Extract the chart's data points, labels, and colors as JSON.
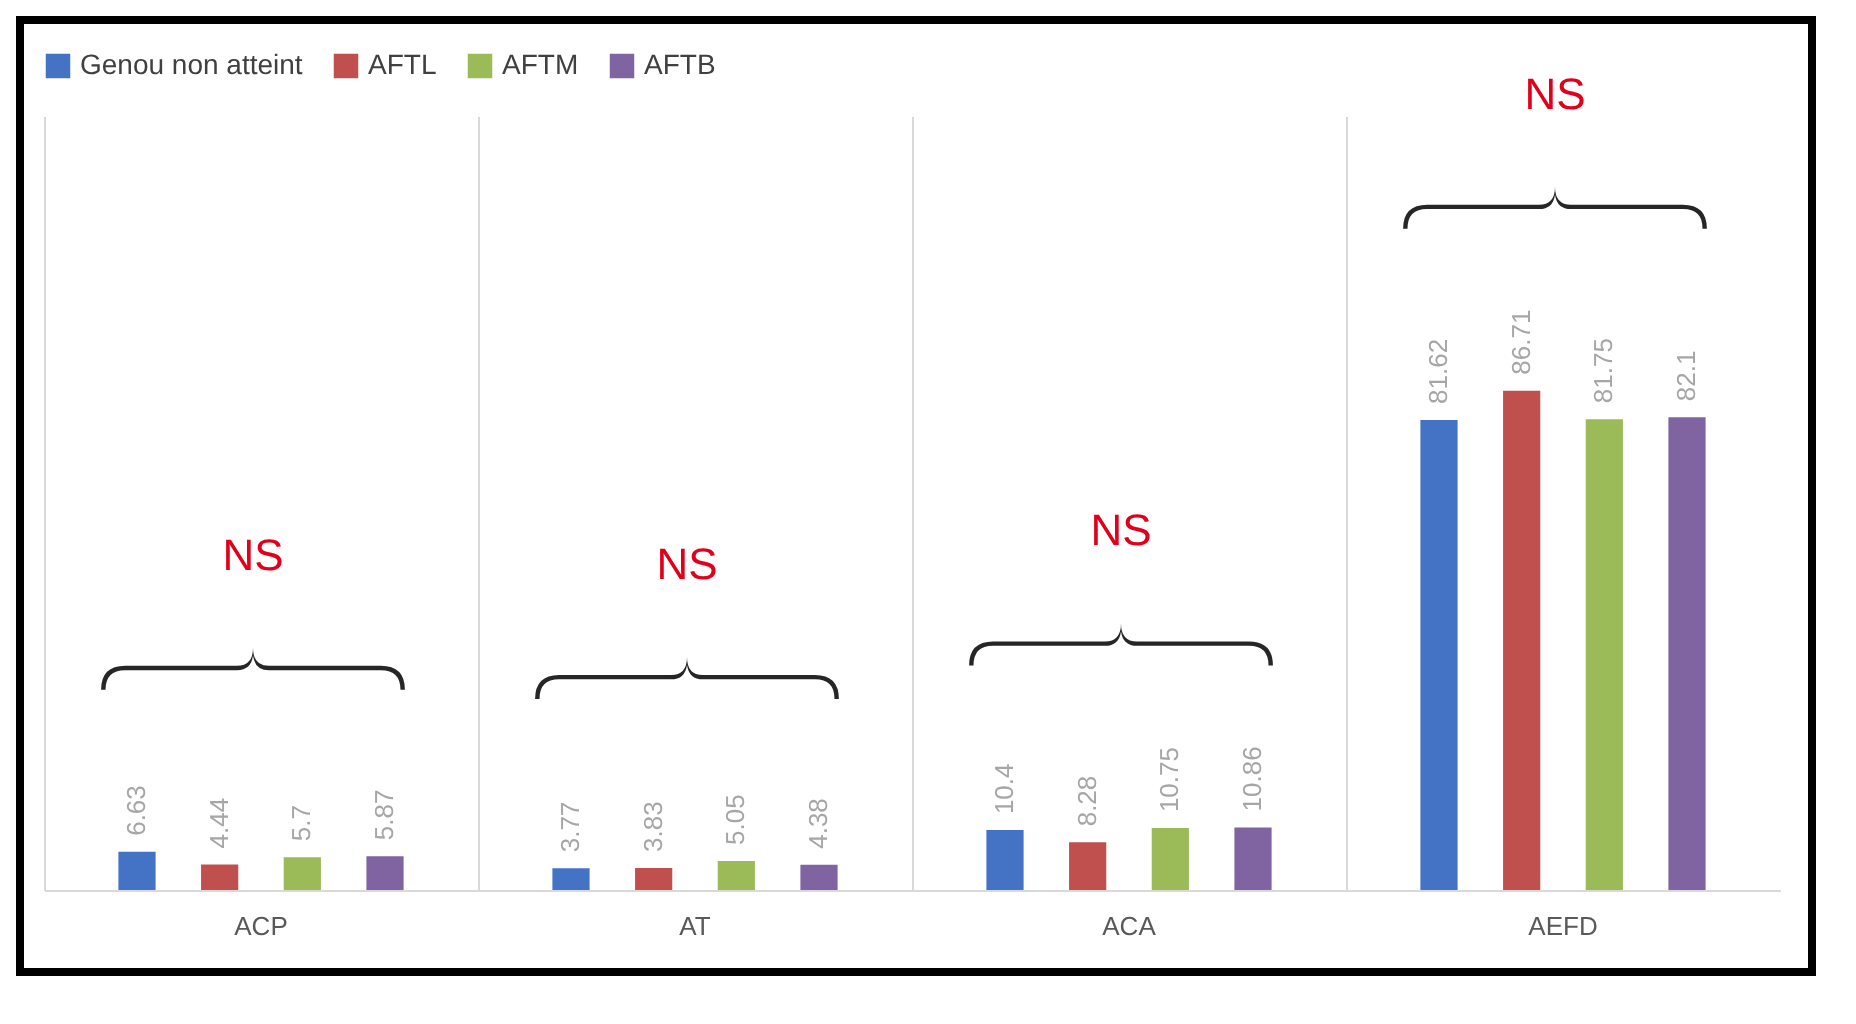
{
  "chart_data": {
    "type": "bar",
    "categories": [
      "ACP",
      "AT",
      "ACA",
      "AEFD"
    ],
    "series": [
      {
        "name": "Genou non atteint",
        "color": "#4472c4",
        "values": [
          6.63,
          3.77,
          10.4,
          81.62
        ]
      },
      {
        "name": "AFTL",
        "color": "#c0504d",
        "values": [
          4.44,
          3.83,
          8.28,
          86.71
        ]
      },
      {
        "name": "AFTM",
        "color": "#9bbb59",
        "values": [
          5.7,
          5.05,
          10.75,
          81.75
        ]
      },
      {
        "name": "AFTB",
        "color": "#8064a2",
        "values": [
          5.87,
          4.38,
          10.86,
          82.1
        ]
      }
    ],
    "data_labels": true,
    "legend": "top",
    "grid": "x",
    "tick_labels": "x",
    "annotations": [
      "NS",
      "NS",
      "NS",
      "NS"
    ]
  }
}
